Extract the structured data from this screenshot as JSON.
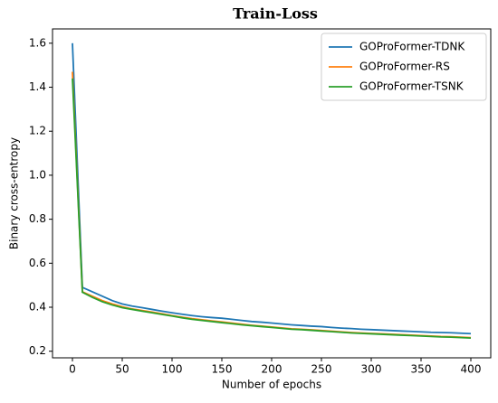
{
  "chart_data": {
    "type": "line",
    "title": "Train-Loss",
    "xlabel": "Number of epochs",
    "ylabel": "Binary cross-entropy",
    "x": [
      0,
      10,
      20,
      30,
      40,
      50,
      60,
      70,
      80,
      90,
      100,
      110,
      120,
      130,
      140,
      150,
      160,
      170,
      180,
      190,
      200,
      210,
      220,
      230,
      240,
      250,
      260,
      270,
      280,
      290,
      300,
      310,
      320,
      330,
      340,
      350,
      360,
      370,
      380,
      390,
      400
    ],
    "series": [
      {
        "name": "GOProFormer-TDNK",
        "color": "#1f77b4",
        "values": [
          1.6,
          0.49,
          0.47,
          0.45,
          0.43,
          0.415,
          0.405,
          0.398,
          0.39,
          0.382,
          0.375,
          0.368,
          0.362,
          0.357,
          0.353,
          0.35,
          0.345,
          0.34,
          0.335,
          0.332,
          0.328,
          0.324,
          0.32,
          0.317,
          0.314,
          0.312,
          0.308,
          0.305,
          0.303,
          0.3,
          0.298,
          0.296,
          0.294,
          0.292,
          0.29,
          0.288,
          0.286,
          0.285,
          0.284,
          0.282,
          0.28
        ]
      },
      {
        "name": "GOProFormer-RS",
        "color": "#ff7f0e",
        "values": [
          1.47,
          0.47,
          0.45,
          0.43,
          0.415,
          0.402,
          0.392,
          0.385,
          0.378,
          0.37,
          0.362,
          0.355,
          0.348,
          0.343,
          0.338,
          0.333,
          0.328,
          0.323,
          0.318,
          0.314,
          0.31,
          0.306,
          0.302,
          0.3,
          0.297,
          0.294,
          0.291,
          0.288,
          0.285,
          0.283,
          0.281,
          0.279,
          0.277,
          0.275,
          0.273,
          0.271,
          0.269,
          0.267,
          0.266,
          0.264,
          0.262
        ]
      },
      {
        "name": "GOProFormer-TSNK",
        "color": "#2ca02c",
        "values": [
          1.44,
          0.468,
          0.445,
          0.425,
          0.41,
          0.398,
          0.39,
          0.382,
          0.375,
          0.367,
          0.36,
          0.352,
          0.345,
          0.34,
          0.335,
          0.33,
          0.325,
          0.32,
          0.316,
          0.312,
          0.308,
          0.304,
          0.3,
          0.298,
          0.295,
          0.292,
          0.289,
          0.286,
          0.283,
          0.281,
          0.279,
          0.277,
          0.275,
          0.273,
          0.271,
          0.269,
          0.267,
          0.265,
          0.264,
          0.262,
          0.26
        ]
      }
    ],
    "xlim": [
      -20,
      420
    ],
    "xticks": [
      0,
      50,
      100,
      150,
      200,
      250,
      300,
      350,
      400
    ],
    "ylim": [
      0.17,
      1.665
    ],
    "yticks": [
      0.2,
      0.4,
      0.6,
      0.8,
      {
        "value": 1,
        "label": "1.0"
      },
      1.2,
      1.4,
      1.6
    ],
    "legend": "upper right",
    "grid": false
  }
}
